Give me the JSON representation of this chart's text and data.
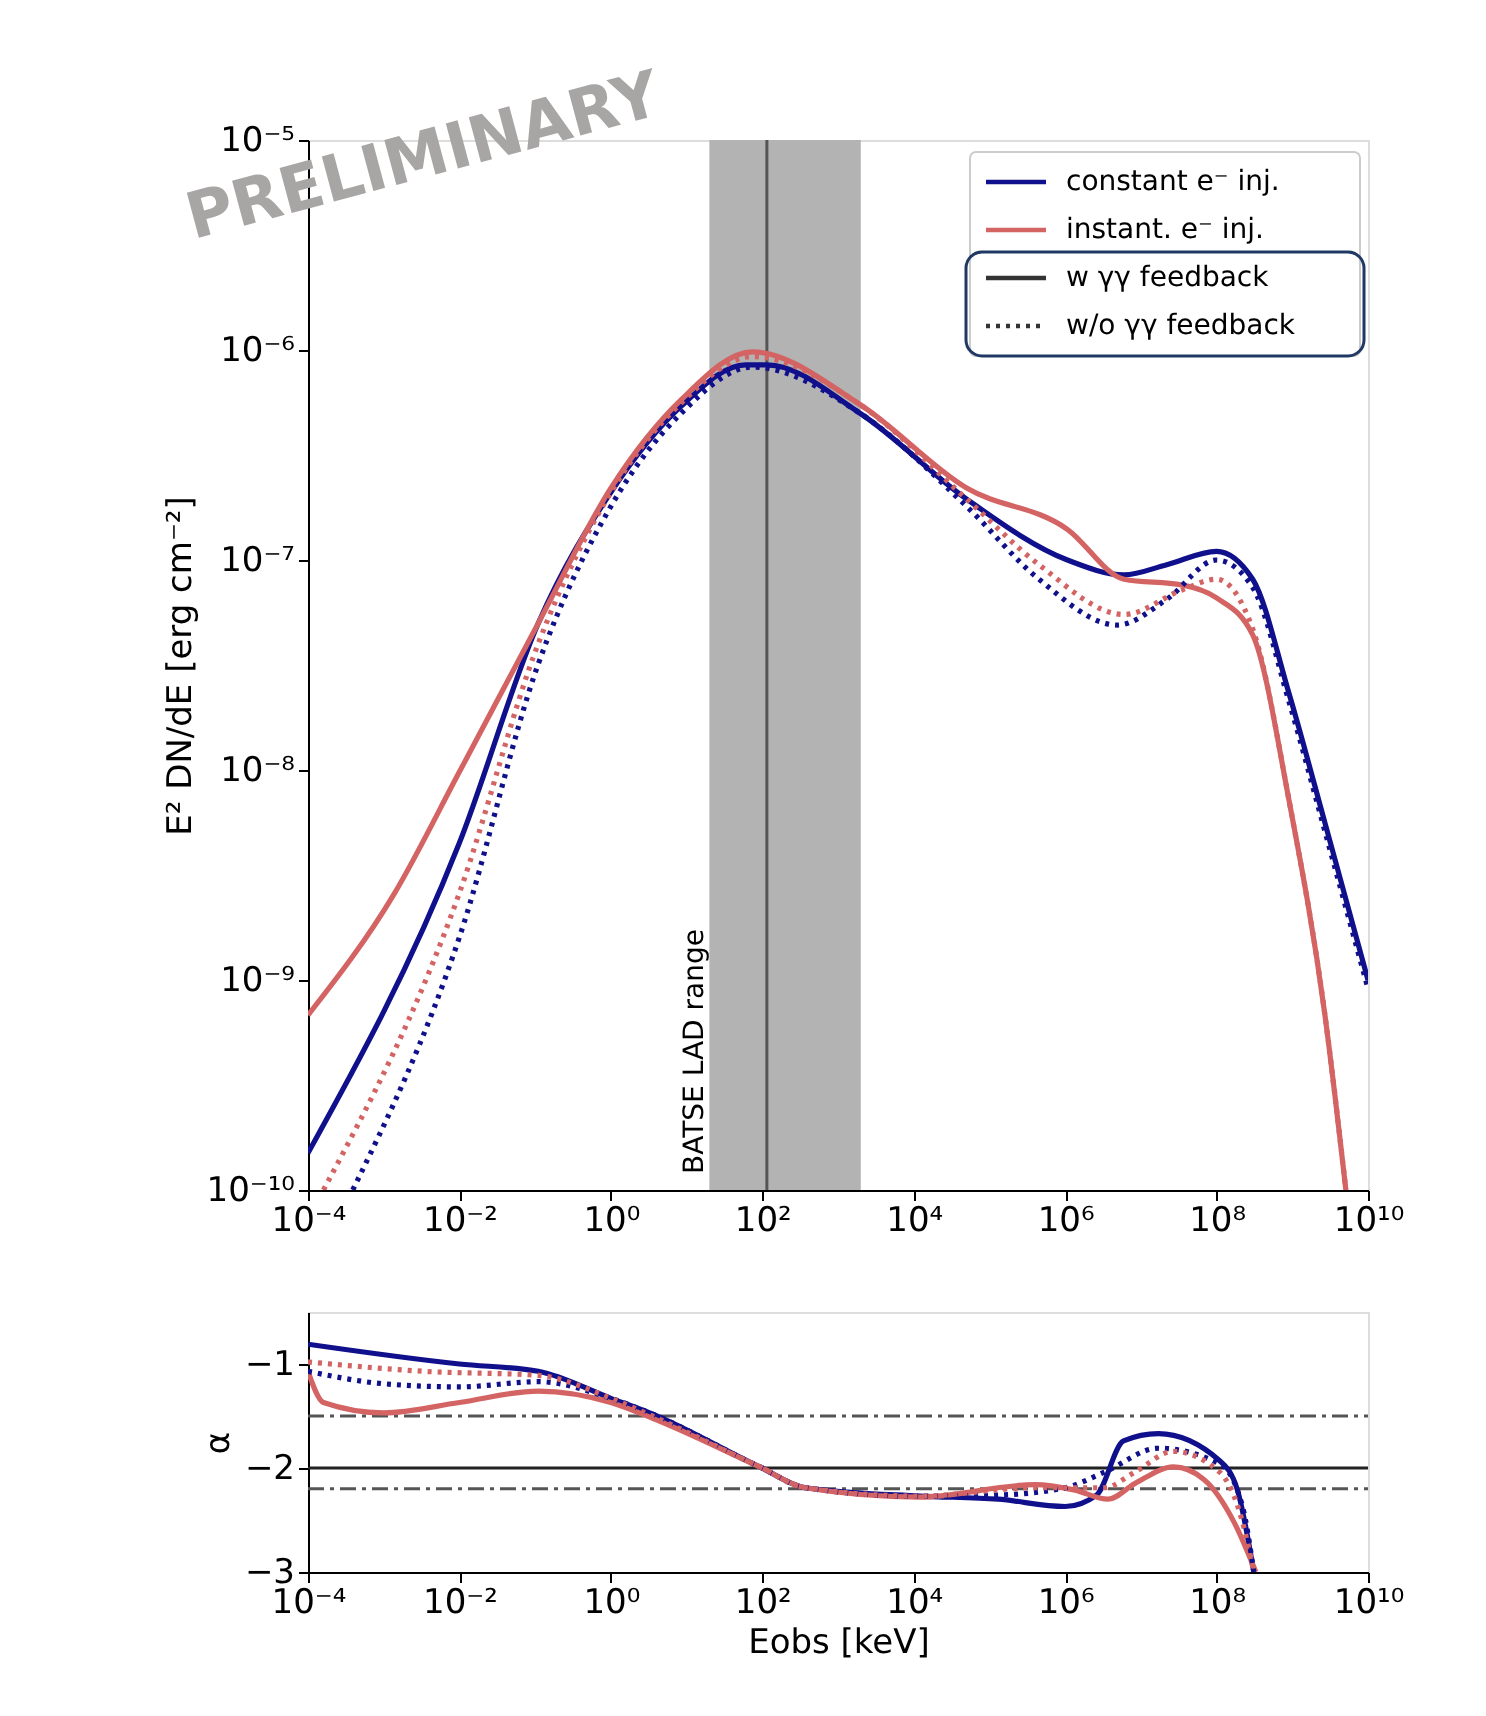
{
  "chart_data": [
    {
      "type": "line",
      "ylabel": "E² DN/dE [erg cm⁻²]",
      "log": "xy",
      "legend": "top right",
      "grid": false,
      "xlim": [
        0.0001,
        10000000000.0
      ],
      "ylim": [
        1e-10,
        1e-05
      ],
      "xticks": [
        {
          "value": 0.0001,
          "label": "10⁻⁴"
        },
        {
          "value": 0.01,
          "label": "10⁻²"
        },
        {
          "value": 1,
          "label": "10⁰"
        },
        {
          "value": 100.0,
          "label": "10²"
        },
        {
          "value": 10000.0,
          "label": "10⁴"
        },
        {
          "value": 1000000.0,
          "label": "10⁶"
        },
        {
          "value": 100000000.0,
          "label": "10⁸"
        },
        {
          "value": 10000000000.0,
          "label": "10¹⁰"
        }
      ],
      "yticks": [
        {
          "value": 1e-10,
          "label": "10⁻¹⁰"
        },
        {
          "value": 1e-09,
          "label": "10⁻⁹"
        },
        {
          "value": 1e-08,
          "label": "10⁻⁸"
        },
        {
          "value": 1e-07,
          "label": "10⁻⁷"
        },
        {
          "value": 1e-06,
          "label": "10⁻⁶"
        },
        {
          "value": 1e-05,
          "label": "10⁻⁵"
        }
      ],
      "bands": [
        {
          "axis": "x",
          "from": 20,
          "to": 2000,
          "label": "BATSE LAD range",
          "color": "#b3b3b3"
        }
      ],
      "ref_lines": [
        {
          "axis": "x",
          "value": 115,
          "color": "#555555",
          "line_style": "solid"
        }
      ],
      "annotations": [
        "PRELIMINARY",
        "w γγ feedback",
        "w/o γγ feedback"
      ],
      "series": [
        {
          "name": "constant e⁻ inj.",
          "color": "#10108c",
          "line_style": "solid",
          "x": [
            0.0001,
            0.01,
            0.11,
            1,
            8.5,
            60,
            115,
            1950,
            50000.0,
            1070000.0,
            6000000.0,
            22000000.0,
            100000000.0,
            300000000.0,
            910000000.0,
            2700000000.0,
            10000000000.0
          ],
          "values": [
            1.5e-10,
            4.5e-09,
            5e-08,
            2.1e-07,
            5.4e-07,
            8.5e-07,
            8.5e-07,
            5e-07,
            1.95e-07,
            1e-07,
            8.5e-08,
            9.5e-08,
            1.1e-07,
            8.1e-08,
            2.3e-08,
            5.6e-09,
            1e-09
          ]
        },
        {
          "name": "instant. e⁻ inj.",
          "color": "#d46464",
          "line_style": "solid",
          "x": [
            0.0001,
            0.0014,
            0.01,
            0.11,
            1,
            8.5,
            74,
            1950,
            50000.0,
            1070000.0,
            6000000.0,
            35000000.0,
            100000000.0,
            300000000.0,
            910000000.0,
            2700000000.0,
            5100000000.0
          ],
          "values": [
            6.8e-10,
            2.6e-09,
            9.8e-09,
            5e-08,
            2.2e-07,
            5.8e-07,
            9.8e-07,
            5.5e-07,
            2.2e-07,
            1.4e-07,
            8.1e-08,
            7.6e-08,
            6.6e-08,
            4.4e-08,
            7.1e-09,
            6.8e-10,
            1e-10
          ]
        },
        {
          "color": "#10108c",
          "line_style": "dotted",
          "x": [
            0.00039,
            0.01,
            0.11,
            1,
            8.5,
            74,
            1950,
            50000.0,
            450000.0,
            4900000.0,
            22000000.0,
            100000000.0,
            300000000.0,
            910000000.0,
            2700000000.0,
            10000000000.0
          ],
          "values": [
            1e-10,
            1.6e-09,
            3.2e-08,
            1.8e-07,
            5e-07,
            8.3e-07,
            5e-07,
            1.8e-07,
            8.1e-08,
            4.9e-08,
            6.5e-08,
            1e-07,
            7.4e-08,
            2.1e-08,
            5.1e-09,
            9.1e-10
          ]
        },
        {
          "color": "#d46464",
          "line_style": "dotted",
          "x": [
            0.00016,
            0.01,
            0.11,
            1,
            8.5,
            74,
            1950,
            50000.0,
            450000.0,
            6000000.0,
            35000000.0,
            100000000.0,
            300000000.0,
            910000000.0,
            2700000000.0,
            5100000000.0
          ],
          "values": [
            1e-10,
            2.6e-09,
            4e-08,
            2.1e-07,
            5.6e-07,
            9.3e-07,
            5.5e-07,
            1.95e-07,
            9.5e-08,
            5.5e-08,
            7.2e-08,
            8.1e-08,
            4.7e-08,
            7.1e-09,
            6.8e-10,
            1e-10
          ]
        }
      ]
    },
    {
      "type": "line",
      "xlabel": "Eobs [keV]",
      "ylabel": "α",
      "log": "x",
      "grid": false,
      "xlim": [
        0.0001,
        10000000000.0
      ],
      "ylim": [
        -3,
        -0.5
      ],
      "xticks": [
        {
          "value": 0.0001,
          "label": "10⁻⁴"
        },
        {
          "value": 0.01,
          "label": "10⁻²"
        },
        {
          "value": 1,
          "label": "10⁰"
        },
        {
          "value": 100.0,
          "label": "10²"
        },
        {
          "value": 10000.0,
          "label": "10⁴"
        },
        {
          "value": 1000000.0,
          "label": "10⁶"
        },
        {
          "value": 100000000.0,
          "label": "10⁸"
        },
        {
          "value": 10000000000.0,
          "label": "10¹⁰"
        }
      ],
      "yticks": [
        -1,
        -2,
        -3
      ],
      "ref_lines": [
        {
          "axis": "y",
          "value": -1.5,
          "color": "#555555",
          "line_style": "dashed"
        },
        {
          "axis": "y",
          "value": -2,
          "color": "#222222",
          "line_style": "solid"
        },
        {
          "axis": "y",
          "value": -2.2,
          "color": "#555555",
          "line_style": "dashed"
        }
      ],
      "series": [
        {
          "color": "#10108c",
          "line_style": "solid",
          "x": [
            0.0001,
            0.01,
            0.11,
            1,
            3.5,
            93,
            370,
            12000.0,
            130000.0,
            1000000.0,
            2600000.0,
            5900000.0,
            17000000.0,
            110000000.0,
            190000000.0,
            310000000.0
          ],
          "values": [
            -0.81,
            -1.0,
            -1.07,
            -1.33,
            -1.48,
            -1.99,
            -2.19,
            -2.27,
            -2.3,
            -2.37,
            -2.26,
            -1.74,
            -1.67,
            -1.93,
            -2.22,
            -3.0
          ]
        },
        {
          "color": "#d46464",
          "line_style": "solid",
          "x": [
            0.0001,
            0.00016,
            0.001,
            0.01,
            0.11,
            1,
            3.5,
            93,
            370,
            12000.0,
            400000.0,
            1300000.0,
            3700000.0,
            8300000.0,
            27000000.0,
            68000000.0,
            170000000.0,
            330000000.0
          ],
          "values": [
            -1.07,
            -1.37,
            -1.47,
            -1.37,
            -1.26,
            -1.37,
            -1.52,
            -1.99,
            -2.19,
            -2.28,
            -2.16,
            -2.21,
            -2.3,
            -2.15,
            -1.99,
            -2.11,
            -2.52,
            -3.0
          ]
        },
        {
          "color": "#10108c",
          "line_style": "dotted",
          "x": [
            0.0001,
            0.001,
            0.01,
            0.11,
            1,
            3.5,
            93,
            370,
            12000.0,
            130000.0,
            1000000.0,
            3300000.0,
            17000000.0,
            110000000.0,
            220000000.0,
            310000000.0
          ],
          "values": [
            -1.07,
            -1.19,
            -1.22,
            -1.17,
            -1.33,
            -1.48,
            -1.99,
            -2.19,
            -2.27,
            -2.26,
            -2.19,
            -2.04,
            -1.81,
            -1.96,
            -2.37,
            -3.0
          ]
        },
        {
          "color": "#d46464",
          "line_style": "dotted",
          "x": [
            0.0001,
            0.0033,
            0.11,
            1,
            3.5,
            93,
            370,
            12000.0,
            400000.0,
            3300000.0,
            8300000.0,
            27000000.0,
            110000000.0,
            220000000.0,
            310000000.0
          ],
          "values": [
            -0.98,
            -1.07,
            -1.11,
            -1.33,
            -1.5,
            -1.99,
            -2.19,
            -2.27,
            -2.19,
            -2.19,
            -2.04,
            -1.84,
            -2.04,
            -2.52,
            -3.0
          ]
        }
      ]
    }
  ]
}
